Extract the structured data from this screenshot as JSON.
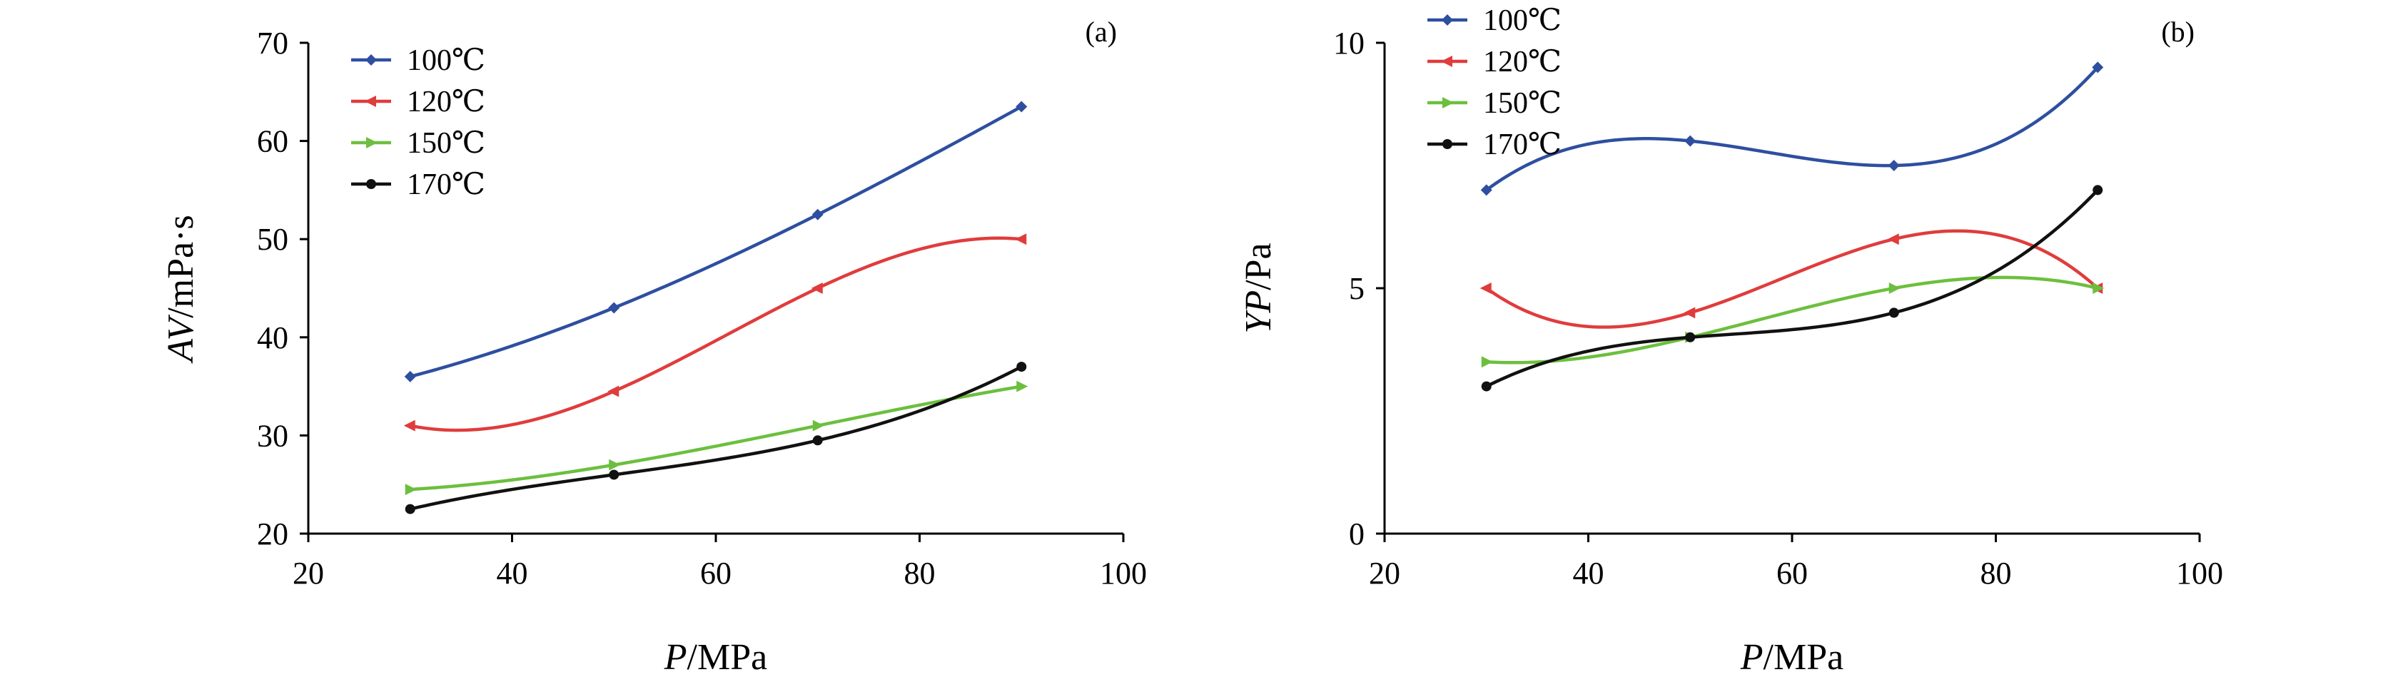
{
  "chart_data": [
    {
      "type": "scatter",
      "panel_label": "(a)",
      "xlabel": {
        "italic": "P",
        "rest": "/MPa"
      },
      "ylabel": {
        "italic": "AV",
        "rest": "/mPa·s"
      },
      "xlim": [
        20,
        100
      ],
      "ylim": [
        20,
        70
      ],
      "xticks": [
        "20",
        "40",
        "60",
        "80",
        "100"
      ],
      "yticks": [
        "20",
        "30",
        "40",
        "50",
        "60",
        "70"
      ],
      "legend_position": "top-left",
      "trendline": "polynomial",
      "x": [
        30,
        50,
        70,
        90
      ],
      "series": [
        {
          "name": "100℃",
          "color": "#2e4fa0",
          "marker": "diamond",
          "values": [
            36,
            43,
            52.5,
            63.5
          ]
        },
        {
          "name": "120℃",
          "color": "#e03c3c",
          "marker": "triangle-left",
          "values": [
            31,
            34.5,
            45,
            50
          ]
        },
        {
          "name": "150℃",
          "color": "#6cbf3e",
          "marker": "triangle-right",
          "values": [
            24.5,
            27,
            31,
            35
          ]
        },
        {
          "name": "170℃",
          "color": "#111111",
          "marker": "circle",
          "values": [
            22.5,
            26,
            29.5,
            37
          ]
        }
      ]
    },
    {
      "type": "scatter",
      "panel_label": "(b)",
      "xlabel": {
        "italic": "P",
        "rest": "/MPa"
      },
      "ylabel": {
        "italic": "YP",
        "rest": "/Pa"
      },
      "xlim": [
        20,
        100
      ],
      "ylim": [
        0,
        10
      ],
      "xticks": [
        "20",
        "40",
        "60",
        "80",
        "100"
      ],
      "yticks": [
        "0",
        "5",
        "10"
      ],
      "legend_position": "top-left",
      "trendline": "polynomial",
      "x": [
        30,
        50,
        70,
        90
      ],
      "series": [
        {
          "name": "100℃",
          "color": "#2e4fa0",
          "marker": "diamond",
          "values": [
            7,
            8,
            7.5,
            9.5
          ]
        },
        {
          "name": "120℃",
          "color": "#e03c3c",
          "marker": "triangle-left",
          "values": [
            5,
            4.5,
            6,
            5
          ]
        },
        {
          "name": "150℃",
          "color": "#6cbf3e",
          "marker": "triangle-right",
          "values": [
            3.5,
            4,
            5,
            5
          ]
        },
        {
          "name": "170℃",
          "color": "#111111",
          "marker": "circle",
          "values": [
            3,
            4,
            4.5,
            7
          ]
        }
      ]
    }
  ]
}
